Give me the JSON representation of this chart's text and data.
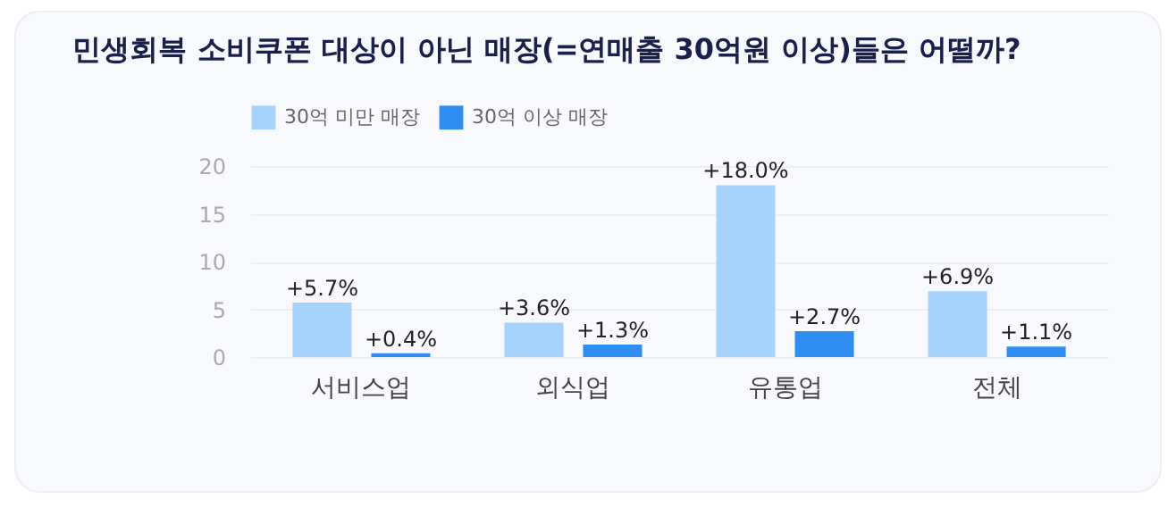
{
  "chart_data": {
    "type": "bar",
    "title": "민생회복 소비쿠폰 대상이 아닌 매장(=연매출 30억원 이상)들은 어떨까?",
    "categories": [
      "서비스업",
      "외식업",
      "유통업",
      "전체"
    ],
    "series": [
      {
        "name": "30억 미만 매장",
        "color": "#a6d2fb",
        "values": [
          5.7,
          3.6,
          18.0,
          6.9
        ],
        "value_labels": [
          "+5.7%",
          "+3.6%",
          "+18.0%",
          "+6.9%"
        ]
      },
      {
        "name": "30억 이상 매장",
        "color": "#2e8ef2",
        "values": [
          0.4,
          1.3,
          2.7,
          1.1
        ],
        "value_labels": [
          "+0.4%",
          "+1.3%",
          "+2.7%",
          "+1.1%"
        ]
      }
    ],
    "ylim": [
      0,
      20
    ],
    "yticks": [
      0,
      5,
      10,
      15,
      20
    ],
    "grid": "y",
    "legend": "top"
  }
}
